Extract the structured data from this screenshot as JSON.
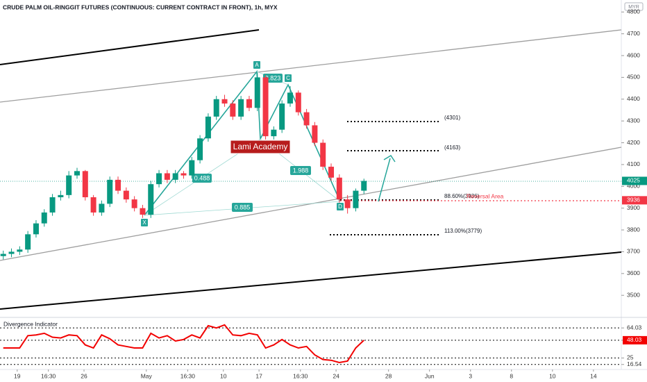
{
  "chart_data": [
    {
      "type": "candlestick",
      "title": "CRUDE PALM OIL-RINGGIT FUTURES (CONTINUOUS: CURRENT CONTRACT IN FRONT), 1h, MYX",
      "currency": "MYR",
      "up_color": "#089981",
      "down_color": "#f23645",
      "x": [
        0,
        2,
        4,
        6,
        8,
        10,
        12,
        14,
        16,
        18,
        20,
        22,
        24,
        26,
        28,
        30,
        32,
        34,
        36,
        38,
        40,
        42,
        44,
        46,
        48,
        50,
        52,
        54,
        56,
        58,
        60,
        62,
        64,
        66,
        68,
        70,
        72,
        74,
        76,
        78,
        80,
        82,
        84,
        86,
        88
      ],
      "open": [
        3680,
        3690,
        3700,
        3710,
        3780,
        3830,
        3880,
        3950,
        3960,
        4050,
        4070,
        3950,
        3880,
        3920,
        4030,
        3980,
        3940,
        3900,
        3870,
        4010,
        4060,
        4030,
        4060,
        4050,
        4120,
        4220,
        4320,
        4400,
        4380,
        4320,
        4400,
        4360,
        4500,
        4230,
        4260,
        4380,
        4430,
        4340,
        4280,
        4200,
        4090,
        4040,
        3940,
        3900,
        3980
      ],
      "high": [
        3705,
        3715,
        3725,
        3795,
        3845,
        3895,
        3965,
        3980,
        4070,
        4085,
        4075,
        3960,
        3935,
        4045,
        4045,
        3995,
        3955,
        3915,
        4025,
        4075,
        4075,
        4075,
        4070,
        4135,
        4235,
        4335,
        4415,
        4420,
        4395,
        4415,
        4415,
        4520,
        4510,
        4275,
        4395,
        4460,
        4440,
        4355,
        4295,
        4215,
        4105,
        4055,
        3960,
        3990,
        4035
      ],
      "low": [
        3665,
        3675,
        3685,
        3695,
        3765,
        3815,
        3865,
        3935,
        3945,
        4035,
        3935,
        3865,
        3865,
        3905,
        3965,
        3925,
        3885,
        3855,
        3855,
        3995,
        4015,
        4015,
        4035,
        4035,
        4105,
        4205,
        4305,
        4365,
        4305,
        4305,
        4345,
        4345,
        4215,
        4215,
        4245,
        4365,
        4325,
        4265,
        4185,
        4075,
        4025,
        3925,
        3875,
        3885,
        3965
      ],
      "close": [
        3690,
        3700,
        3710,
        3780,
        3830,
        3880,
        3950,
        3960,
        4050,
        4070,
        3950,
        3880,
        3920,
        4030,
        3980,
        3940,
        3900,
        3870,
        4010,
        4060,
        4030,
        4060,
        4050,
        4120,
        4220,
        4320,
        4400,
        4380,
        4320,
        4400,
        4360,
        4500,
        4230,
        4260,
        4380,
        4430,
        4340,
        4280,
        4200,
        4090,
        4040,
        3940,
        3900,
        3980,
        4025
      ],
      "xlim": [
        -0.8,
        150.8
      ],
      "ylim": [
        3405,
        4855
      ],
      "yticks": [
        3500,
        3600,
        3700,
        3800,
        3900,
        4000,
        4100,
        4200,
        4300,
        4400,
        4500,
        4600,
        4700,
        4800
      ],
      "xticks": [
        {
          "value": 3.4,
          "label": "19"
        },
        {
          "value": 11,
          "label": "16:30"
        },
        {
          "value": 19.7,
          "label": "26"
        },
        {
          "value": 34.9,
          "label": "May"
        },
        {
          "value": 45,
          "label": "16:30"
        },
        {
          "value": 53.7,
          "label": "10"
        },
        {
          "value": 62.4,
          "label": "17"
        },
        {
          "value": 72.5,
          "label": "16:30"
        },
        {
          "value": 81.2,
          "label": "24"
        },
        {
          "value": 94,
          "label": "28"
        },
        {
          "value": 104,
          "label": "Jun"
        },
        {
          "value": 114,
          "label": "3"
        },
        {
          "value": 124,
          "label": "8"
        },
        {
          "value": 134,
          "label": "10"
        },
        {
          "value": 144,
          "label": "14"
        }
      ],
      "price_labels": [
        {
          "value": 4025,
          "label": "4025",
          "color": "#089981"
        },
        {
          "value": 3936,
          "label": "3936",
          "color": "#f23645"
        }
      ],
      "pattern_points": [
        "X",
        "A",
        "C",
        "D"
      ],
      "ratios": [
        "0.823",
        "0.488",
        "0.885",
        "1.988"
      ],
      "levels": [
        "(4301)",
        "(4163)",
        "88.60%(3936)",
        "113.00%(3779)"
      ],
      "annotations": [
        "Reversal Area",
        "Lami Academy"
      ]
    },
    {
      "type": "line",
      "title": "Divergence Indicator",
      "color": "#f20000",
      "x": [
        0,
        2,
        4,
        6,
        8,
        10,
        12,
        14,
        16,
        18,
        20,
        22,
        24,
        26,
        28,
        30,
        32,
        34,
        36,
        38,
        40,
        42,
        44,
        46,
        48,
        50,
        52,
        54,
        56,
        58,
        60,
        62,
        64,
        66,
        68,
        70,
        72,
        74,
        76,
        78,
        80,
        82,
        84,
        86,
        88
      ],
      "values": [
        38,
        38,
        38,
        54,
        55,
        57,
        52,
        51,
        55,
        54,
        42,
        38,
        55,
        50,
        42,
        40,
        38,
        38,
        57,
        51,
        54,
        47,
        49,
        55,
        51,
        67,
        64,
        68,
        55,
        54,
        57,
        55,
        38,
        42,
        49,
        42,
        38,
        40,
        29,
        23,
        22,
        19,
        21,
        38,
        48.03
      ],
      "ylim": [
        10,
        75
      ],
      "yticks": [
        16.54,
        25.0,
        48.03,
        64.03
      ]
    }
  ]
}
